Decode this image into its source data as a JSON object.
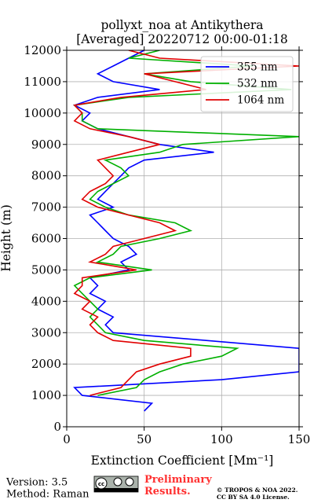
{
  "chart_data": {
    "type": "line",
    "title": "pollyxt_noa at Antikythera",
    "subtitle": "[Averaged] 20220712 00:00-01:18",
    "x_label": "Extinction Coefficient [Mm⁻¹]",
    "y_label": "Height (m)",
    "xlim": [
      0,
      150
    ],
    "xticks": [
      0,
      50,
      100,
      150
    ],
    "ylim": [
      0,
      12000
    ],
    "yticks": [
      0,
      1000,
      2000,
      3000,
      4000,
      5000,
      6000,
      7000,
      8000,
      9000,
      10000,
      11000,
      12000
    ],
    "grid": true,
    "legend": "upper right",
    "heights": [
      0,
      250,
      500,
      750,
      1000,
      1250,
      1500,
      1750,
      2000,
      2250,
      2500,
      2750,
      3000,
      3250,
      3500,
      3750,
      4000,
      4250,
      4500,
      4750,
      5000,
      5250,
      5500,
      5750,
      6000,
      6250,
      6500,
      6750,
      7000,
      7250,
      7500,
      7750,
      8000,
      8250,
      8500,
      8750,
      9000,
      9250,
      9500,
      9750,
      10000,
      10250,
      10500,
      10750,
      11000,
      11250,
      11500,
      11750,
      12000
    ],
    "series": [
      {
        "name": "355 nm",
        "color": "#0000ff",
        "values": [
          null,
          null,
          50,
          55,
          10,
          5,
          100,
          150,
          150,
          150,
          150,
          90,
          30,
          25,
          30,
          20,
          25,
          15,
          20,
          15,
          40,
          35,
          45,
          40,
          30,
          25,
          20,
          15,
          30,
          20,
          25,
          30,
          35,
          40,
          50,
          95,
          60,
          40,
          20,
          10,
          15,
          5,
          20,
          60,
          30,
          20,
          30,
          40,
          50
        ]
      },
      {
        "name": "532 nm",
        "color": "#00b000",
        "values": [
          null,
          null,
          null,
          null,
          20,
          45,
          50,
          60,
          75,
          100,
          110,
          50,
          25,
          20,
          15,
          20,
          15,
          10,
          5,
          15,
          55,
          20,
          30,
          35,
          60,
          80,
          70,
          40,
          25,
          15,
          20,
          30,
          40,
          35,
          25,
          60,
          75,
          150,
          20,
          10,
          10,
          5,
          40,
          145,
          80,
          50,
          120,
          40,
          60
        ]
      },
      {
        "name": "1064 nm",
        "color": "#e00000",
        "values": [
          null,
          null,
          null,
          null,
          15,
          35,
          40,
          45,
          60,
          80,
          80,
          30,
          20,
          15,
          20,
          10,
          15,
          5,
          10,
          10,
          45,
          15,
          25,
          30,
          50,
          70,
          60,
          40,
          20,
          10,
          15,
          25,
          30,
          25,
          20,
          40,
          60,
          40,
          15,
          5,
          10,
          5,
          35,
          90,
          70,
          50,
          150,
          60,
          40
        ]
      }
    ],
    "footer": {
      "version": "Version: 3.5",
      "method": "Method: Raman",
      "status": "Preliminary Results.",
      "copyright": "© TROPOS & NOA 2022.",
      "license": "CC BY SA 4.0 License."
    }
  }
}
